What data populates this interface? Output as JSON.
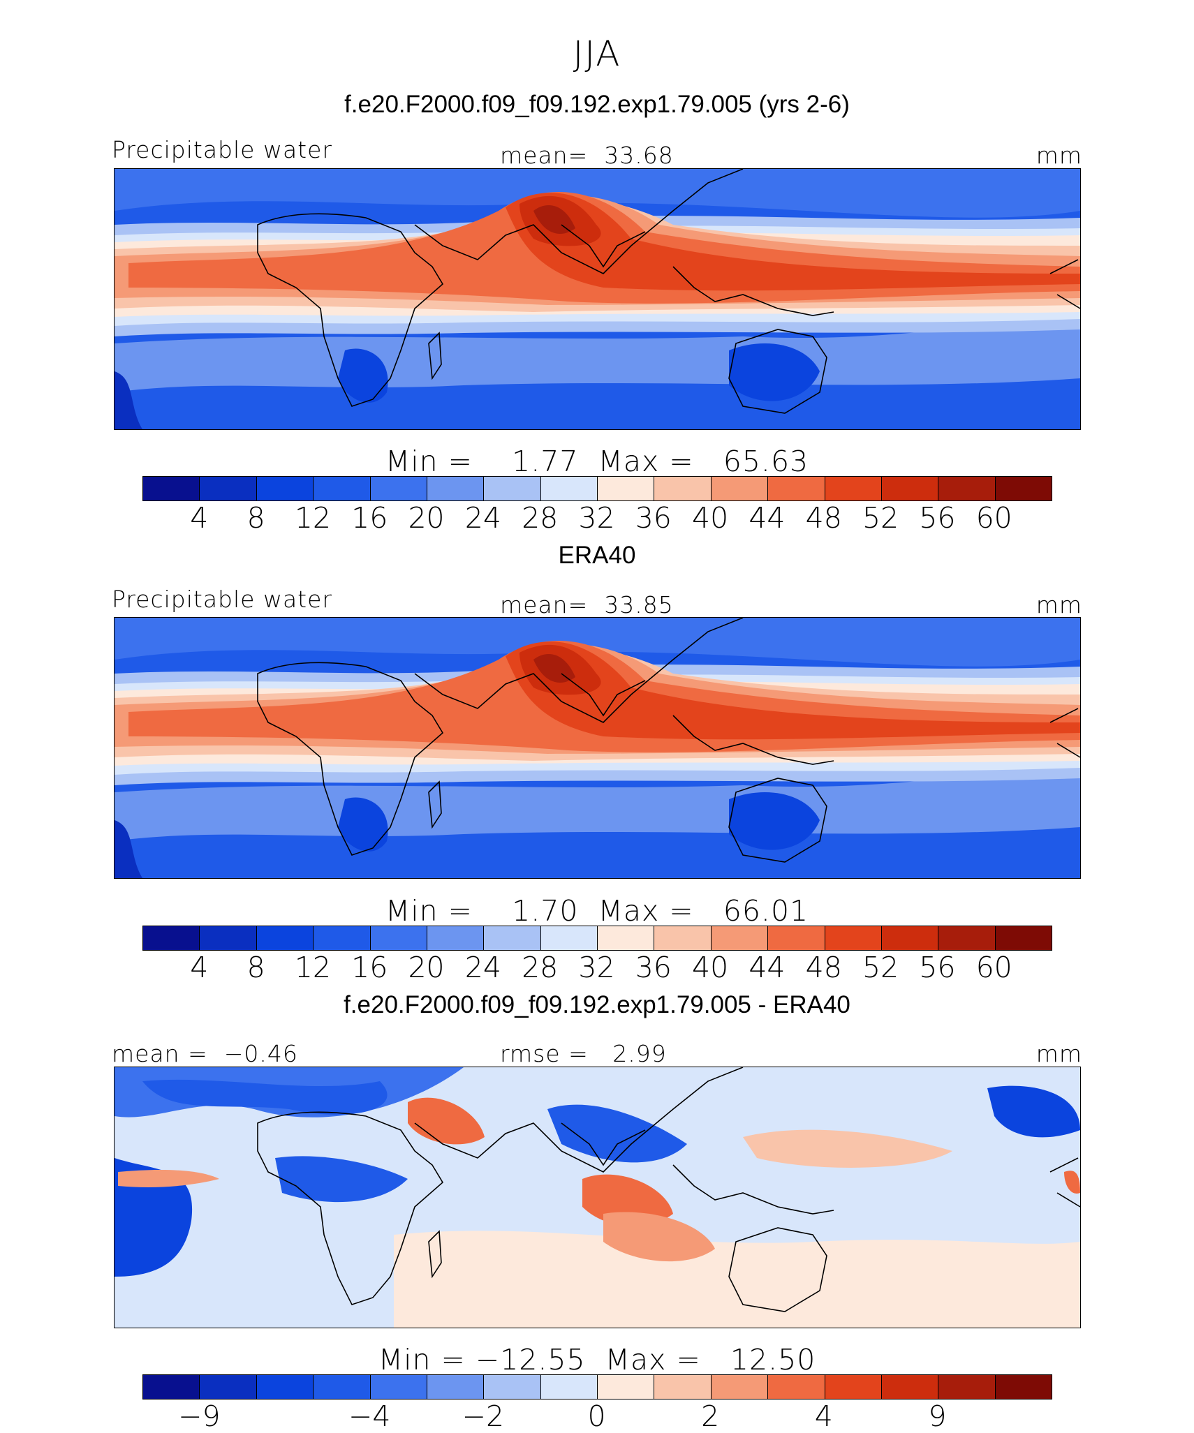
{
  "season": "JJA",
  "colormap": {
    "abs": [
      "#08108f",
      "#0a2fc0",
      "#0b44de",
      "#1f5ae8",
      "#3c72ee",
      "#6c95f0",
      "#a9c2f5",
      "#d8e6fb",
      "#fde9dc",
      "#f9c4aa",
      "#f59a76",
      "#ef6a41",
      "#e3441c",
      "#cd2d0d",
      "#a71d0b",
      "#7e0b05"
    ],
    "diff": [
      "#08108f",
      "#0a2fc0",
      "#0b44de",
      "#1f5ae8",
      "#3c72ee",
      "#6c95f0",
      "#a9c2f5",
      "#d8e6fb",
      "#fde9dc",
      "#f9c4aa",
      "#f59a76",
      "#ef6a41",
      "#e3441c",
      "#cd2d0d",
      "#a71d0b",
      "#7e0b05"
    ]
  },
  "panels": [
    {
      "title": "f.e20.F2000.f09_f09.192.exp1.79.005 (yrs 2-6)",
      "left_label": "Precipitable water",
      "center_label": "mean=  33.68",
      "right_label": "mm",
      "minmax": "Min =    1.77  Max =   65.63",
      "ticks": [
        "4",
        "8",
        "12",
        "16",
        "20",
        "24",
        "28",
        "32",
        "36",
        "40",
        "44",
        "48",
        "52",
        "56",
        "60"
      ],
      "colormap": "abs",
      "chart_data": {
        "type": "heatmap",
        "variable": "Precipitable water",
        "units": "mm",
        "mean": 33.68,
        "min": 1.77,
        "max": 65.63,
        "contour_levels": [
          4,
          8,
          12,
          16,
          20,
          24,
          28,
          32,
          36,
          40,
          44,
          48,
          52,
          56,
          60
        ]
      }
    },
    {
      "title": "ERA40",
      "left_label": "Precipitable water",
      "center_label": "mean=  33.85",
      "right_label": "mm",
      "minmax": "Min =    1.70  Max =   66.01",
      "ticks": [
        "4",
        "8",
        "12",
        "16",
        "20",
        "24",
        "28",
        "32",
        "36",
        "40",
        "44",
        "48",
        "52",
        "56",
        "60"
      ],
      "colormap": "abs",
      "chart_data": {
        "type": "heatmap",
        "variable": "Precipitable water",
        "units": "mm",
        "mean": 33.85,
        "min": 1.7,
        "max": 66.01,
        "contour_levels": [
          4,
          8,
          12,
          16,
          20,
          24,
          28,
          32,
          36,
          40,
          44,
          48,
          52,
          56,
          60
        ]
      }
    },
    {
      "title": "f.e20.F2000.f09_f09.192.exp1.79.005 - ERA40",
      "left_label": "mean =  −0.46",
      "center_label": "rmse =   2.99",
      "right_label": "mm",
      "minmax": "Min = −12.55  Max =   12.50",
      "ticks": [
        "−9",
        "−4",
        "−2",
        "0",
        "2",
        "4",
        "9"
      ],
      "colormap": "diff",
      "chart_data": {
        "type": "heatmap",
        "variable": "difference",
        "units": "mm",
        "mean": -0.46,
        "rmse": 2.99,
        "min": -12.55,
        "max": 12.5,
        "tick_values": [
          -9,
          -4,
          -2,
          0,
          2,
          4,
          9
        ]
      }
    }
  ]
}
